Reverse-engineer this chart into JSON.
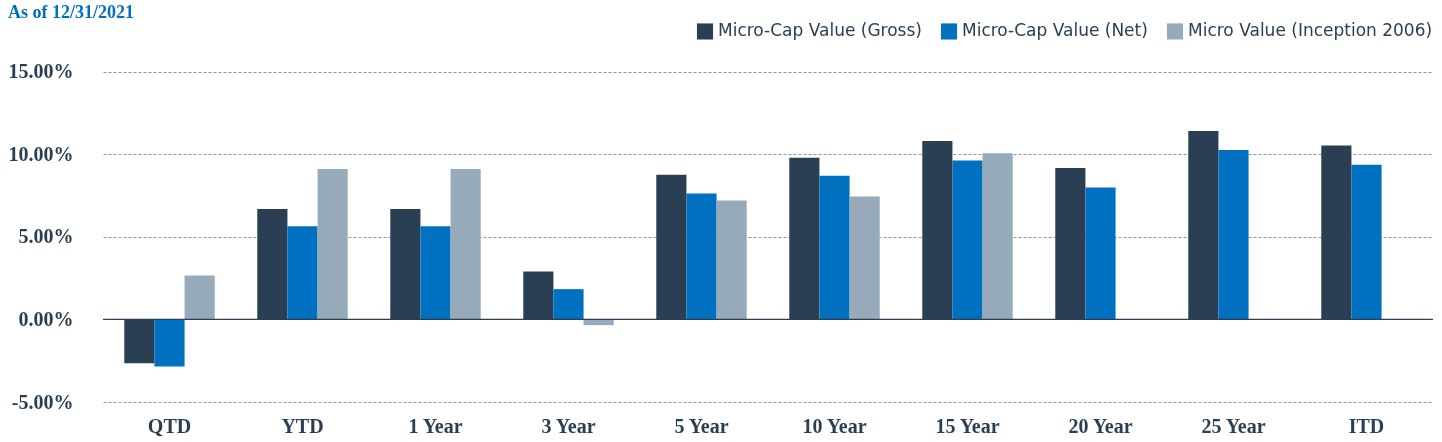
{
  "chart_data": {
    "type": "bar",
    "subtitle": "As of 12/31/2021",
    "categories": [
      "QTD",
      "YTD",
      "1 Year",
      "3 Year",
      "5 Year",
      "10 Year",
      "15 Year",
      "20 Year",
      "25 Year",
      "ITD"
    ],
    "series": [
      {
        "name": "Micro-Cap Value (Gross)",
        "color": "#2a3f54",
        "values": [
          -2.65,
          6.68,
          6.68,
          2.9,
          8.75,
          9.78,
          10.8,
          9.16,
          11.4,
          10.52
        ]
      },
      {
        "name": "Micro-Cap Value (Net)",
        "color": "#0070c0",
        "values": [
          -2.85,
          5.63,
          5.63,
          1.83,
          7.62,
          8.7,
          9.62,
          7.98,
          10.25,
          9.36
        ]
      },
      {
        "name": "Micro Value (Inception 2006)",
        "color": "#97aaba",
        "values": [
          2.65,
          9.1,
          9.1,
          -0.35,
          7.2,
          7.44,
          10.06,
          null,
          null,
          null
        ]
      }
    ],
    "ylim": [
      -5,
      18
    ],
    "yticks": [
      {
        "value": -5,
        "label": "-5.00%"
      },
      {
        "value": 0,
        "label": "0.00%"
      },
      {
        "value": 5,
        "label": "5.00%"
      },
      {
        "value": 10,
        "label": "10.00%"
      },
      {
        "value": 15,
        "label": "15.00%"
      }
    ],
    "grid": "y",
    "legend": "top right"
  }
}
